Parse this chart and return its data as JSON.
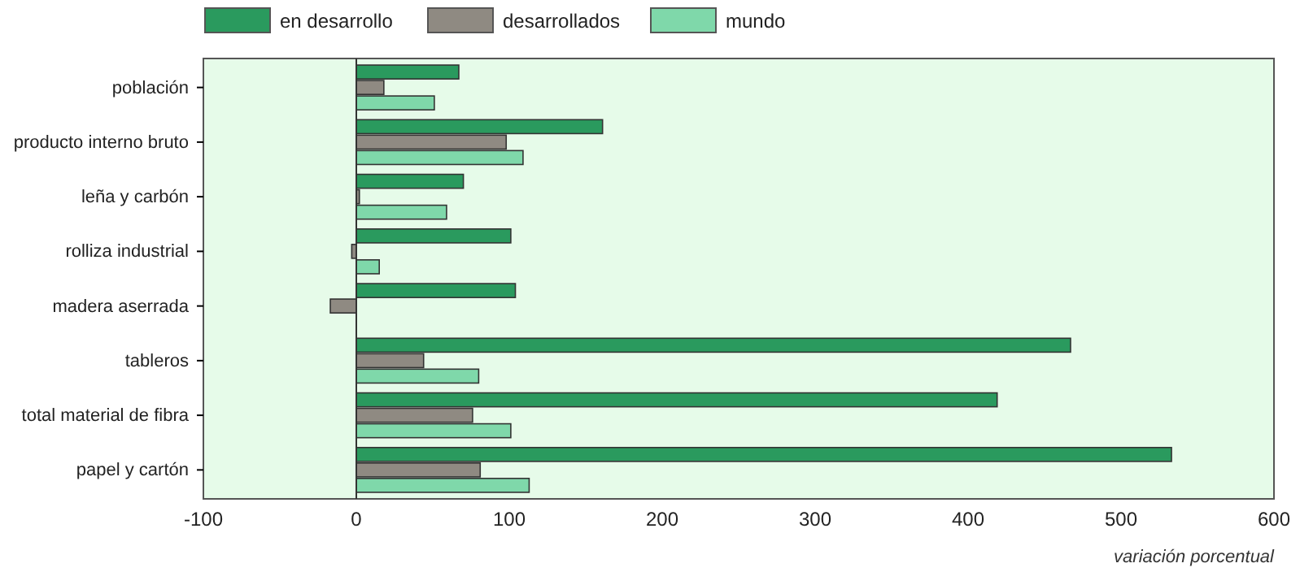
{
  "chart_data": {
    "type": "bar",
    "orientation": "horizontal",
    "xlabel": "variación porcentual",
    "categories": [
      "población",
      "producto interno bruto",
      "leña y carbón",
      "rolliza industrial",
      "madera aserrada",
      "tableros",
      "total material de fibra",
      "papel y cartón"
    ],
    "series": [
      {
        "name": "en desarrollo",
        "color": "#2a9a5e",
        "values": [
          67,
          161,
          70,
          101,
          104,
          467,
          419,
          533
        ]
      },
      {
        "name": "desarrollados",
        "color": "#8f8a82",
        "values": [
          18,
          98,
          2,
          -3,
          -17,
          44,
          76,
          81
        ]
      },
      {
        "name": "mundo",
        "color": "#7fd8aa",
        "values": [
          51,
          109,
          59,
          15,
          null,
          80,
          101,
          113
        ]
      }
    ],
    "xlim": [
      -100,
      600
    ],
    "xticks": [
      -100,
      0,
      100,
      200,
      300,
      400,
      500,
      600
    ],
    "legend": "top"
  }
}
